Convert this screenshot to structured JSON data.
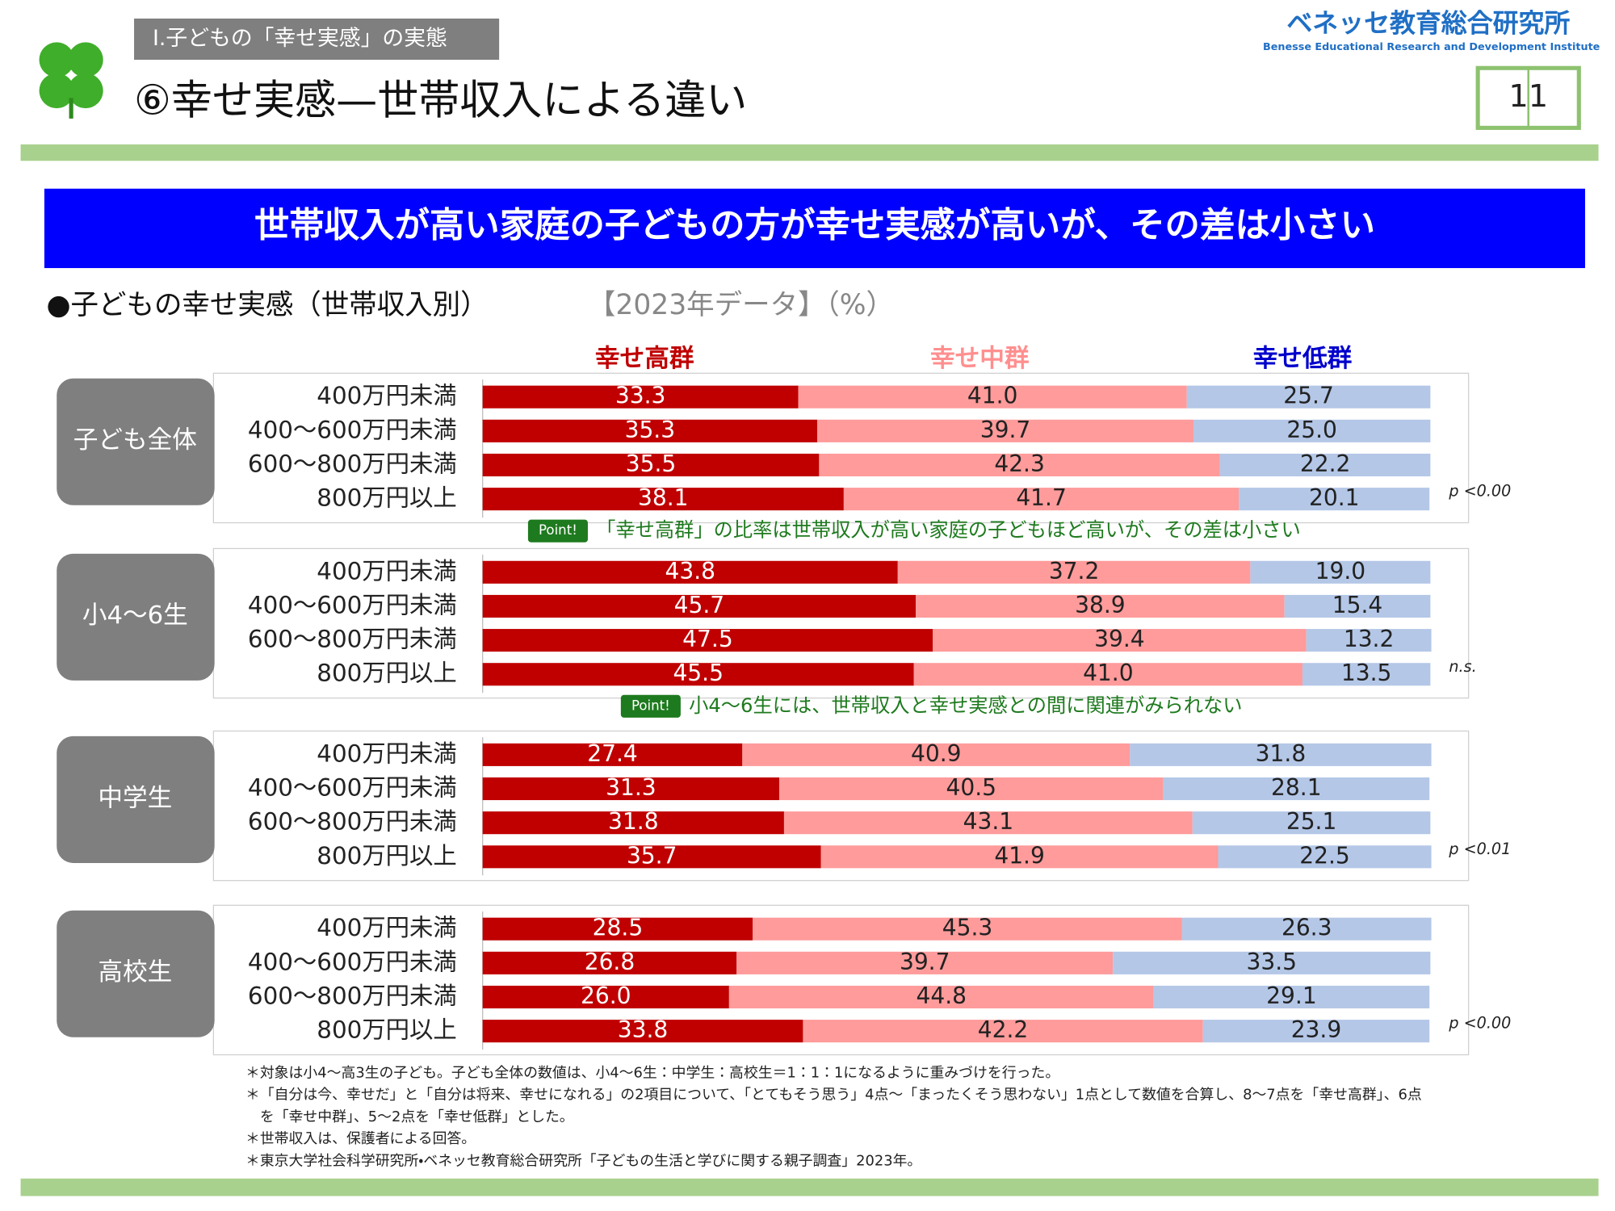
{
  "header": {
    "section": "Ⅰ.子どもの「幸せ実感」の実態",
    "title": "⑥幸せ実感—世帯収入による違い",
    "logo": "ベネッセ教育総合研究所",
    "logo_sub": "Benesse Educational Research and Development Institute",
    "page": "11"
  },
  "headline": "世帯収入が高い家庭の子どもの方が幸せ実感が高いが、その差は小さい",
  "chart_heading": "●子どもの幸せ実感（世帯収入別）",
  "chart_heading_note": "【2023年データ】（%）",
  "chart_data": {
    "type": "bar",
    "orientation": "horizontal",
    "stacked": true,
    "xlim": [
      0,
      100
    ],
    "series": [
      {
        "name": "幸せ高群",
        "color": "#c00000",
        "label_color": "#c00000",
        "values": [
          [
            33.3,
            35.3,
            35.5,
            38.1
          ],
          [
            43.8,
            45.7,
            47.5,
            45.5
          ],
          [
            27.4,
            31.3,
            31.8,
            35.7
          ],
          [
            28.5,
            26.8,
            26.0,
            33.8
          ]
        ],
        "value_labels": [
          [
            "33.3",
            "35.3",
            "35.5",
            "38.1"
          ],
          [
            "43.8",
            "45.7",
            "47.5",
            "45.5"
          ],
          [
            "27.4",
            "31.3",
            "31.8",
            "35.7"
          ],
          [
            "28.5",
            "26.8",
            "26.0",
            "33.8"
          ]
        ]
      },
      {
        "name": "幸せ中群",
        "color": "#ff9b9b",
        "label_color": "#ff8f8f",
        "values": [
          [
            41.0,
            39.7,
            42.3,
            41.7
          ],
          [
            37.2,
            38.9,
            39.4,
            41.0
          ],
          [
            40.9,
            40.5,
            43.1,
            41.9
          ],
          [
            45.3,
            39.7,
            44.8,
            42.2
          ]
        ],
        "value_labels": [
          [
            "41.0",
            "39.7",
            "42.3",
            "41.7"
          ],
          [
            "37.2",
            "38.9",
            "39.4",
            "41.0"
          ],
          [
            "40.9",
            "40.5",
            "43.1",
            "41.9"
          ],
          [
            "45.3",
            "39.7",
            "44.8",
            "42.2"
          ]
        ]
      },
      {
        "name": "幸せ低群",
        "color": "#b4c7e7",
        "label_color": "#0000cc",
        "values": [
          [
            25.7,
            25.0,
            22.2,
            20.1
          ],
          [
            19.0,
            15.4,
            13.2,
            13.5
          ],
          [
            31.8,
            28.1,
            25.1,
            22.5
          ],
          [
            26.3,
            33.5,
            29.1,
            23.9
          ]
        ],
        "value_labels": [
          [
            "25.7",
            "25.0",
            "22.2",
            "20.1"
          ],
          [
            "19.0",
            "15.4",
            "13.2",
            "13.5"
          ],
          [
            "31.8",
            "28.1",
            "25.1",
            "22.5"
          ],
          [
            "26.3",
            "33.5",
            "29.1",
            "23.9"
          ]
        ]
      }
    ],
    "groups": [
      {
        "label": "子ども全体",
        "categories": [
          "400万円未満",
          "400〜600万円未満",
          "600〜800万円未満",
          "800万円以上"
        ],
        "significance": "p <0.00",
        "point": {
          "badge": "Point!",
          "text": "「幸せ高群」の比率は世帯収入が高い家庭の子どもほど高いが、その差は小さい"
        }
      },
      {
        "label": "小4〜6生",
        "categories": [
          "400万円未満",
          "400〜600万円未満",
          "600〜800万円未満",
          "800万円以上"
        ],
        "significance": "n.s.",
        "point": {
          "badge": "Point!",
          "text": "小4〜6生には、世帯収入と幸せ実感との間に関連がみられない"
        }
      },
      {
        "label": "中学生",
        "categories": [
          "400万円未満",
          "400〜600万円未満",
          "600〜800万円未満",
          "800万円以上"
        ],
        "significance": "p <0.01"
      },
      {
        "label": "高校生",
        "categories": [
          "400万円未満",
          "400〜600万円未満",
          "600〜800万円未満",
          "800万円以上"
        ],
        "significance": "p <0.00"
      }
    ]
  },
  "notes": [
    "＊対象は小4〜高3生の子ども。子ども全体の数値は、小4〜6生：中学生：高校生＝1：1：1になるように重みづけを行った。",
    "＊「自分は今、幸せだ」と「自分は将来、幸せになれる」の2項目について、「とてもそう思う」4点〜「まったくそう思わない」1点として数値を合算し、8〜7点を「幸せ高群」、6点",
    "を「幸せ中群」、5〜2点を「幸せ低群」とした。",
    "＊世帯収入は、保護者による回答。",
    "＊東京大学社会科学研究所・ベネッセ教育総合研究所「子どもの生活と学びに関する親子調査」2023年。"
  ]
}
